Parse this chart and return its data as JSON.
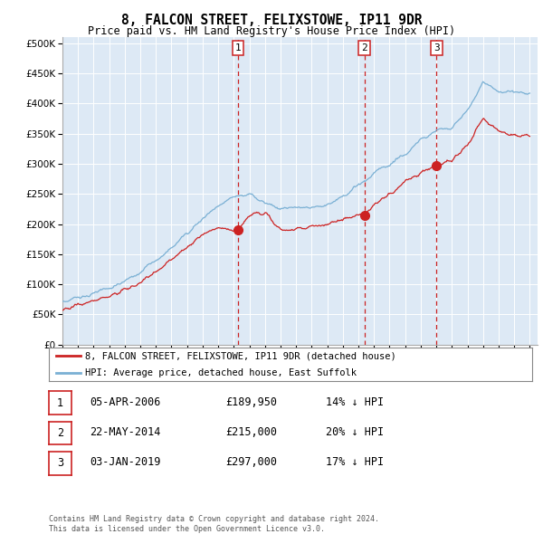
{
  "title": "8, FALCON STREET, FELIXSTOWE, IP11 9DR",
  "subtitle": "Price paid vs. HM Land Registry's House Price Index (HPI)",
  "hpi_color": "#7ab0d4",
  "price_color": "#cc2222",
  "plot_bg": "#dde9f5",
  "sale_dates": [
    2006.27,
    2014.38,
    2019.01
  ],
  "sale_prices": [
    189950,
    215000,
    297000
  ],
  "sale_labels": [
    "1",
    "2",
    "3"
  ],
  "legend_entries": [
    "8, FALCON STREET, FELIXSTOWE, IP11 9DR (detached house)",
    "HPI: Average price, detached house, East Suffolk"
  ],
  "table_entries": [
    {
      "label": "1",
      "date": "05-APR-2006",
      "price": "£189,950",
      "pct": "14% ↓ HPI"
    },
    {
      "label": "2",
      "date": "22-MAY-2014",
      "price": "£215,000",
      "pct": "20% ↓ HPI"
    },
    {
      "label": "3",
      "date": "03-JAN-2019",
      "price": "£297,000",
      "pct": "17% ↓ HPI"
    }
  ],
  "footnote1": "Contains HM Land Registry data © Crown copyright and database right 2024.",
  "footnote2": "This data is licensed under the Open Government Licence v3.0.",
  "y_ticks": [
    0,
    50000,
    100000,
    150000,
    200000,
    250000,
    300000,
    350000,
    400000,
    450000,
    500000
  ],
  "hpi_control": {
    "years": [
      1995,
      1996,
      1997,
      1998,
      1999,
      2000,
      2001,
      2002,
      2003,
      2004,
      2005,
      2006,
      2007,
      2008,
      2009,
      2010,
      2011,
      2012,
      2013,
      2014,
      2015,
      2016,
      2017,
      2018,
      2019,
      2020,
      2021,
      2022,
      2023,
      2024,
      2025
    ],
    "values": [
      72000,
      78000,
      85000,
      93000,
      105000,
      120000,
      138000,
      162000,
      185000,
      210000,
      230000,
      245000,
      250000,
      235000,
      225000,
      228000,
      228000,
      232000,
      245000,
      265000,
      285000,
      300000,
      315000,
      340000,
      355000,
      360000,
      390000,
      435000,
      420000,
      420000,
      415000
    ]
  },
  "price_control": {
    "years": [
      1995,
      1996,
      1997,
      1998,
      1999,
      2000,
      2001,
      2002,
      2003,
      2004,
      2005,
      2006.27,
      2007,
      2008,
      2009,
      2010,
      2011,
      2012,
      2013,
      2014.38,
      2015,
      2016,
      2017,
      2018,
      2019.01,
      2020,
      2021,
      2022,
      2023,
      2024,
      2025
    ],
    "values": [
      60000,
      65000,
      72000,
      80000,
      91000,
      104000,
      120000,
      142000,
      162000,
      182000,
      193000,
      189950,
      215000,
      220000,
      190000,
      192000,
      195000,
      200000,
      208000,
      215000,
      232000,
      248000,
      270000,
      285000,
      297000,
      305000,
      330000,
      375000,
      355000,
      348000,
      345000
    ]
  }
}
